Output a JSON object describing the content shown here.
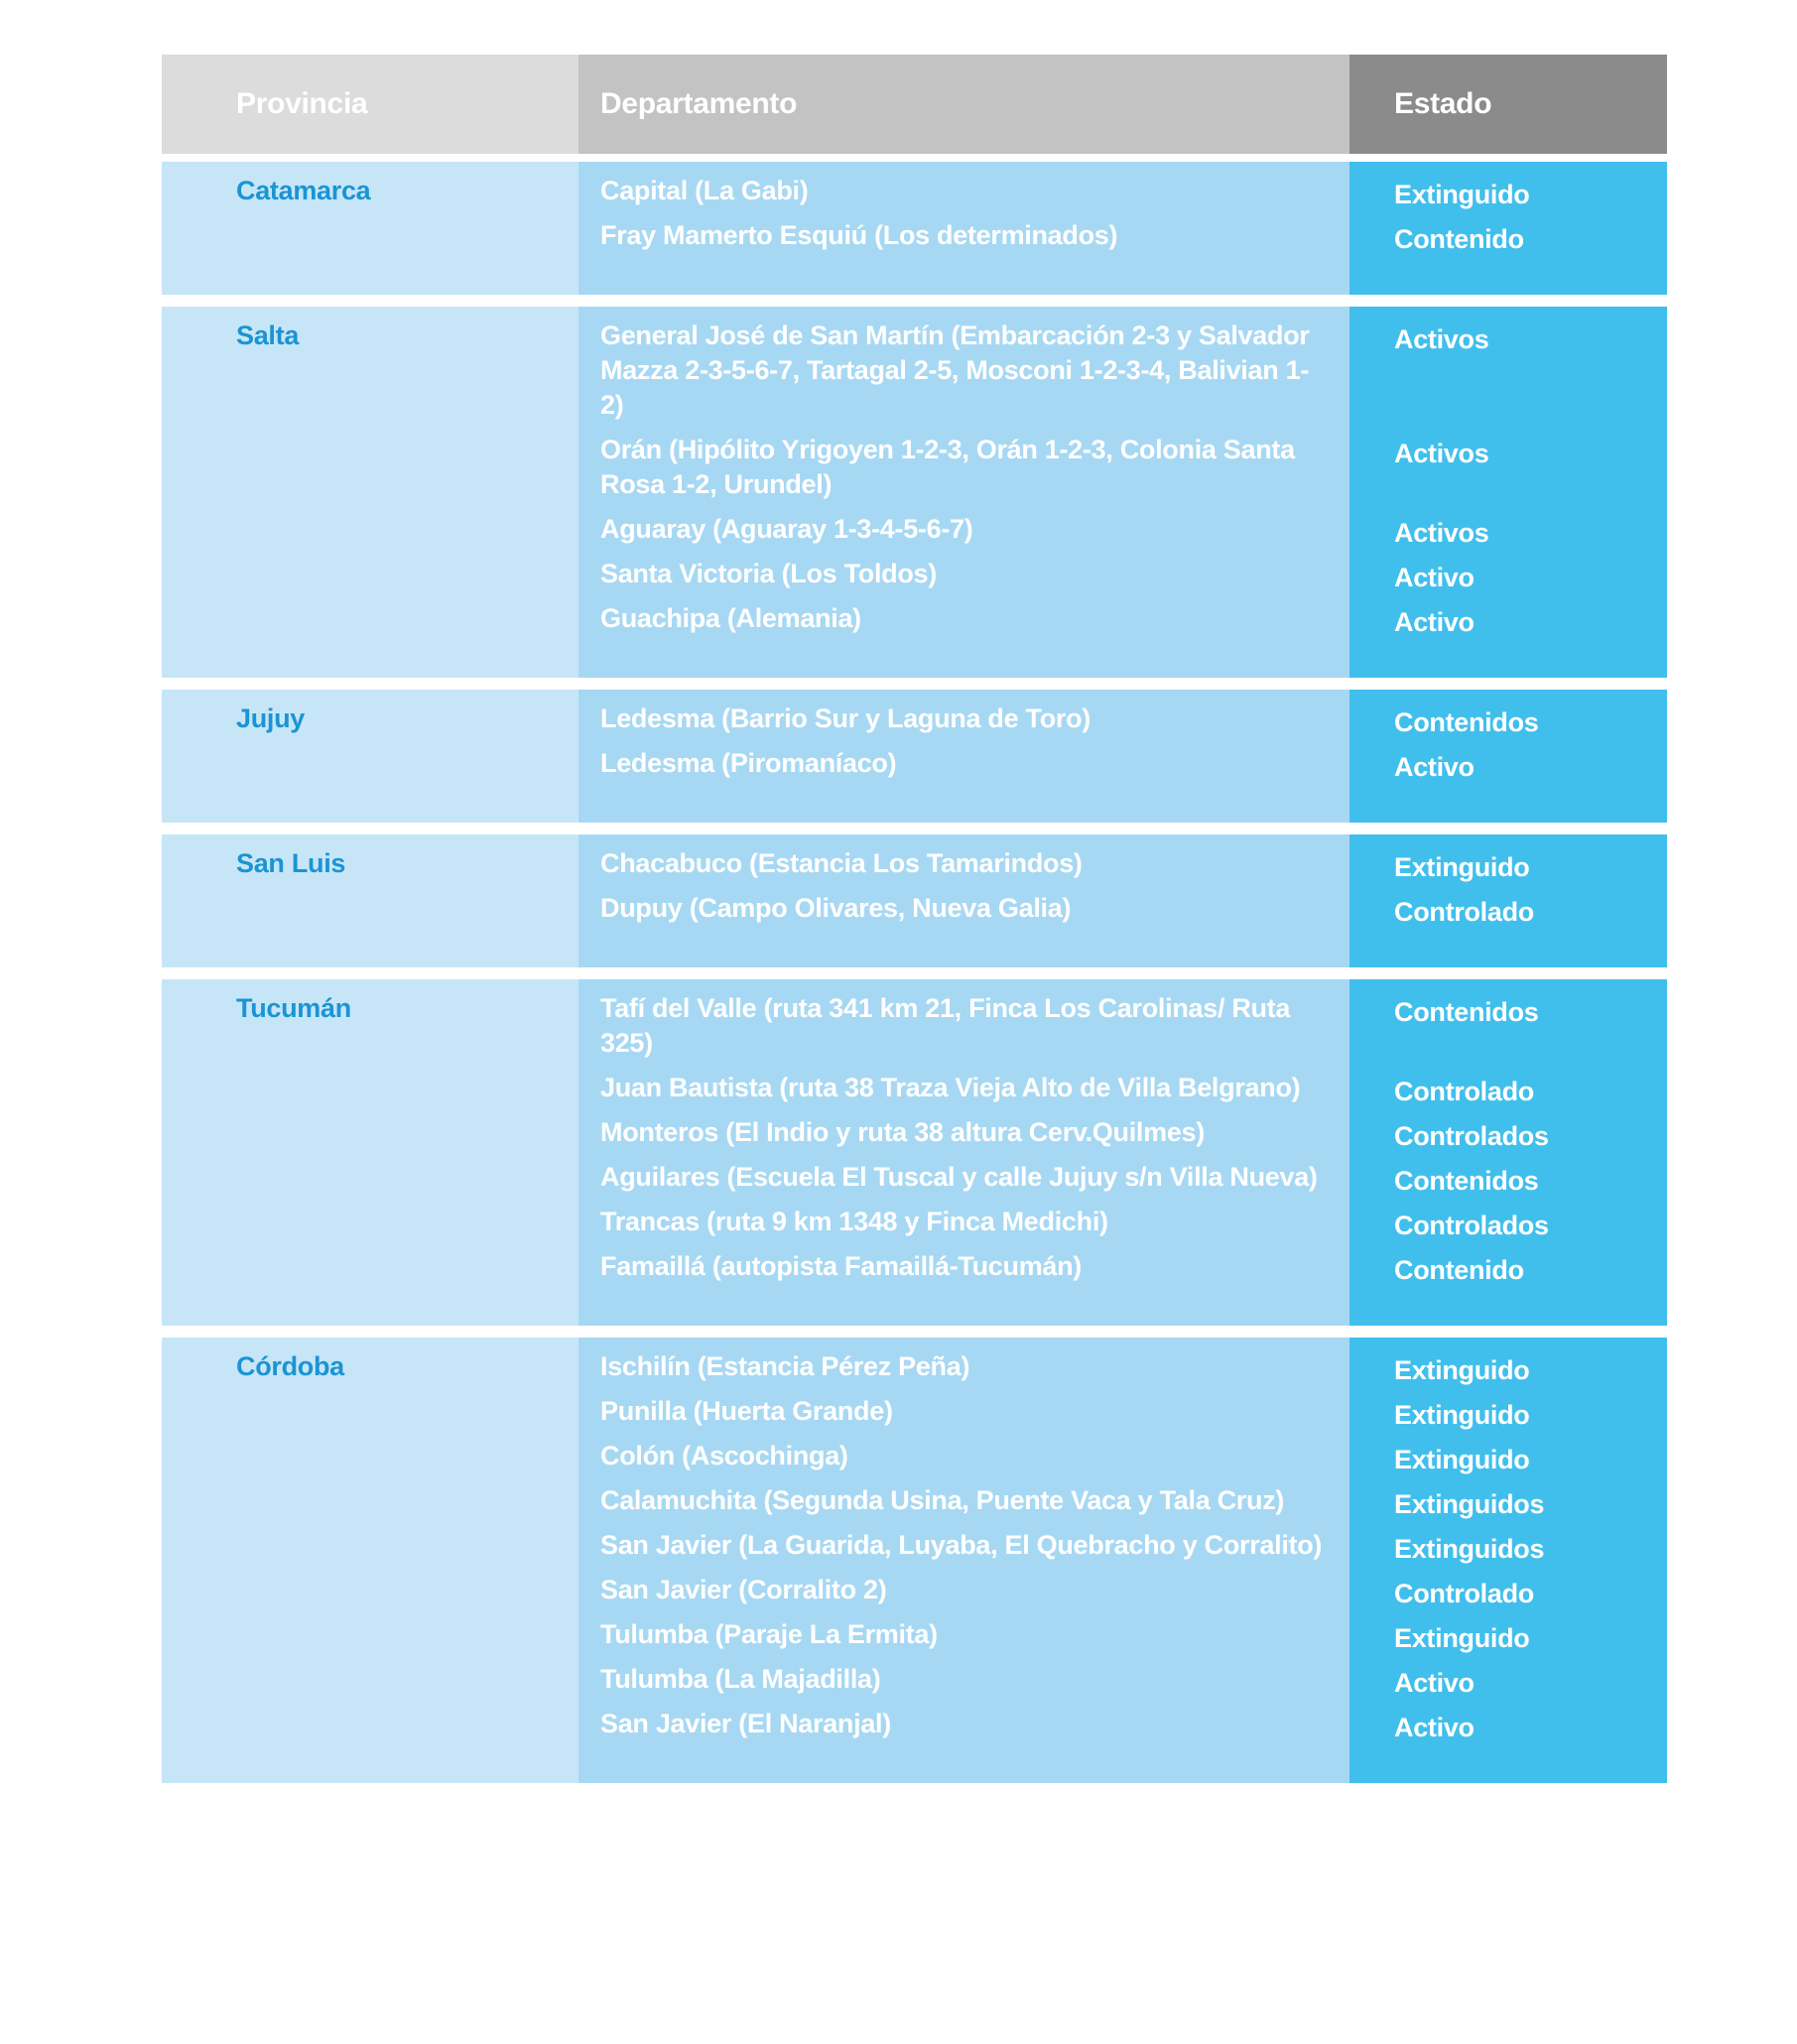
{
  "table": {
    "headers": {
      "provincia": "Provincia",
      "departamento": "Departamento",
      "estado": "Estado"
    },
    "colors": {
      "header_provincia_bg": "#dcdcdc",
      "header_departamento_bg": "#c3c3c3",
      "header_estado_bg": "#8b8b8b",
      "header_text": "#ffffff",
      "provincia_cell_bg": "#c6e6f8",
      "departamento_cell_bg": "#a7d8f3",
      "estado_cell_bg": "#41bfec",
      "provincia_text": "#1b94d3",
      "cell_text": "#ffffff"
    },
    "sections": [
      {
        "provincia": "Catamarca",
        "rows": [
          {
            "departamento": "Capital (La Gabi)",
            "estado": "Extinguido"
          },
          {
            "departamento": "Fray Mamerto Esquiú (Los determinados)",
            "estado": "Contenido"
          }
        ]
      },
      {
        "provincia": "Salta",
        "rows": [
          {
            "departamento": "General José de San Martín (Embarcación 2-3 y Salvador Mazza 2-3-5-6-7, Tartagal 2-5, Mosconi 1-2-3-4, Balivian 1-2)",
            "estado": "Activos"
          },
          {
            "departamento": "Orán (Hipólito Yrigoyen 1-2-3, Orán 1-2-3, Colonia Santa Rosa 1-2, Urundel)",
            "estado": "Activos"
          },
          {
            "departamento": "Aguaray (Aguaray 1-3-4-5-6-7)",
            "estado": "Activos"
          },
          {
            "departamento": "Santa Victoria (Los Toldos)",
            "estado": "Activo"
          },
          {
            "departamento": "Guachipa (Alemania)",
            "estado": "Activo"
          }
        ]
      },
      {
        "provincia": "Jujuy",
        "rows": [
          {
            "departamento": "Ledesma (Barrio Sur y Laguna de Toro)",
            "estado": "Contenidos"
          },
          {
            "departamento": "Ledesma (Piromaníaco)",
            "estado": "Activo"
          }
        ]
      },
      {
        "provincia": "San Luis",
        "rows": [
          {
            "departamento": "Chacabuco (Estancia Los Tamarindos)",
            "estado": "Extinguido"
          },
          {
            "departamento": "Dupuy (Campo Olivares, Nueva Galia)",
            "estado": "Controlado"
          }
        ]
      },
      {
        "provincia": "Tucumán",
        "rows": [
          {
            "departamento": "Tafí del Valle (ruta 341 km 21, Finca Los Carolinas/ Ruta 325)",
            "estado": "Contenidos"
          },
          {
            "departamento": "Juan Bautista (ruta 38 Traza Vieja Alto de Villa Belgrano)",
            "estado": "Controlado"
          },
          {
            "departamento": "Monteros (El Indio y ruta 38 altura Cerv.Quilmes)",
            "estado": "Controlados"
          },
          {
            "departamento": "Aguilares (Escuela El Tuscal y calle Jujuy s/n Villa Nueva)",
            "estado": "Contenidos"
          },
          {
            "departamento": "Trancas (ruta 9 km 1348 y Finca Medichi)",
            "estado": "Controlados"
          },
          {
            "departamento": "Famaillá (autopista Famaillá-Tucumán)",
            "estado": "Contenido"
          }
        ]
      },
      {
        "provincia": "Córdoba",
        "rows": [
          {
            "departamento": "Ischilín (Estancia Pérez Peña)",
            "estado": "Extinguido"
          },
          {
            "departamento": "Punilla (Huerta Grande)",
            "estado": "Extinguido"
          },
          {
            "departamento": "Colón (Ascochinga)",
            "estado": "Extinguido"
          },
          {
            "departamento": "Calamuchita (Segunda Usina, Puente Vaca y Tala Cruz)",
            "estado": "Extinguidos"
          },
          {
            "departamento": "San Javier (La Guarida, Luyaba, El Quebracho y Corralito)",
            "estado": "Extinguidos"
          },
          {
            "departamento": "San Javier (Corralito 2)",
            "estado": "Controlado"
          },
          {
            "departamento": "Tulumba (Paraje La Ermita)",
            "estado": "Extinguido"
          },
          {
            "departamento": "Tulumba (La Majadilla)",
            "estado": "Activo"
          },
          {
            "departamento": "San Javier (El Naranjal)",
            "estado": "Activo"
          }
        ]
      }
    ]
  }
}
